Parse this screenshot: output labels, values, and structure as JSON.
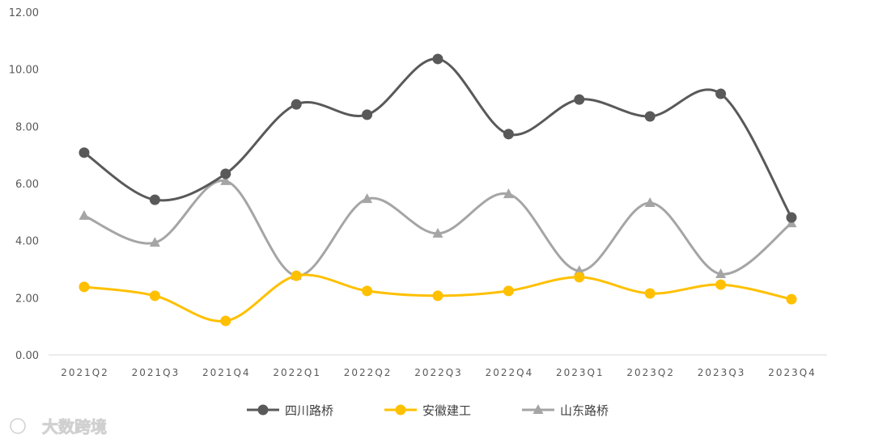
{
  "chart_data": {
    "type": "line",
    "categories": [
      "2021Q2",
      "2021Q3",
      "2021Q4",
      "2022Q1",
      "2022Q2",
      "2022Q3",
      "2022Q4",
      "2023Q1",
      "2023Q2",
      "2023Q3",
      "2023Q4"
    ],
    "ylim": [
      0,
      12
    ],
    "yticks": [
      "0.00",
      "2.00",
      "4.00",
      "6.00",
      "8.00",
      "10.00",
      "12.00"
    ],
    "grid": false,
    "smooth": true,
    "legend_position": "bottom",
    "series": [
      {
        "name": "四川路桥",
        "color": "#595959",
        "marker": "circle",
        "values": [
          7.08,
          5.43,
          6.34,
          8.77,
          8.41,
          10.36,
          7.73,
          8.94,
          8.35,
          9.14,
          4.81
        ]
      },
      {
        "name": "安徽建工",
        "color": "#FFC000",
        "marker": "circle",
        "values": [
          2.38,
          2.07,
          1.19,
          2.77,
          2.24,
          2.07,
          2.24,
          2.72,
          2.15,
          2.46,
          1.95
        ]
      },
      {
        "name": "山东路桥",
        "color": "#A5A5A5",
        "marker": "triangle",
        "values": [
          4.87,
          3.93,
          6.09,
          2.77,
          5.46,
          4.25,
          5.63,
          2.94,
          5.32,
          2.83,
          4.61
        ]
      }
    ]
  },
  "watermark": "大数跨境"
}
